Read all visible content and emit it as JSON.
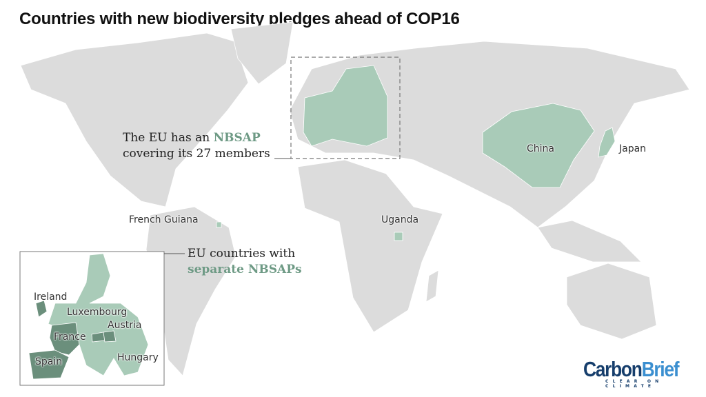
{
  "title": "Countries with new biodiversity pledges ahead of COP16",
  "colors": {
    "land": "#dcdcdc",
    "eu_nbsap": "#a9cbb8",
    "separate_nbsap": "#6b8f7c",
    "annotation_accent": "#6e9a85"
  },
  "labels": {
    "china": "China",
    "japan": "Japan",
    "french_guiana": "French Guiana",
    "uganda": "Uganda"
  },
  "eu_annotation": {
    "line1_prefix": "The EU has an ",
    "line1_highlight": "NBSAP",
    "line2": "covering its 27 members"
  },
  "inset_annotation": {
    "line1": "EU countries with",
    "line2_highlight": "separate NBSAPs"
  },
  "inset_labels": {
    "ireland": "Ireland",
    "luxembourg": "Luxembourg",
    "austria": "Austria",
    "france": "France",
    "hungary": "Hungary",
    "spain": "Spain"
  },
  "logo": {
    "name_part1": "Carbon",
    "name_part2": "Brief",
    "tagline": "CLEAR ON CLIMATE"
  }
}
